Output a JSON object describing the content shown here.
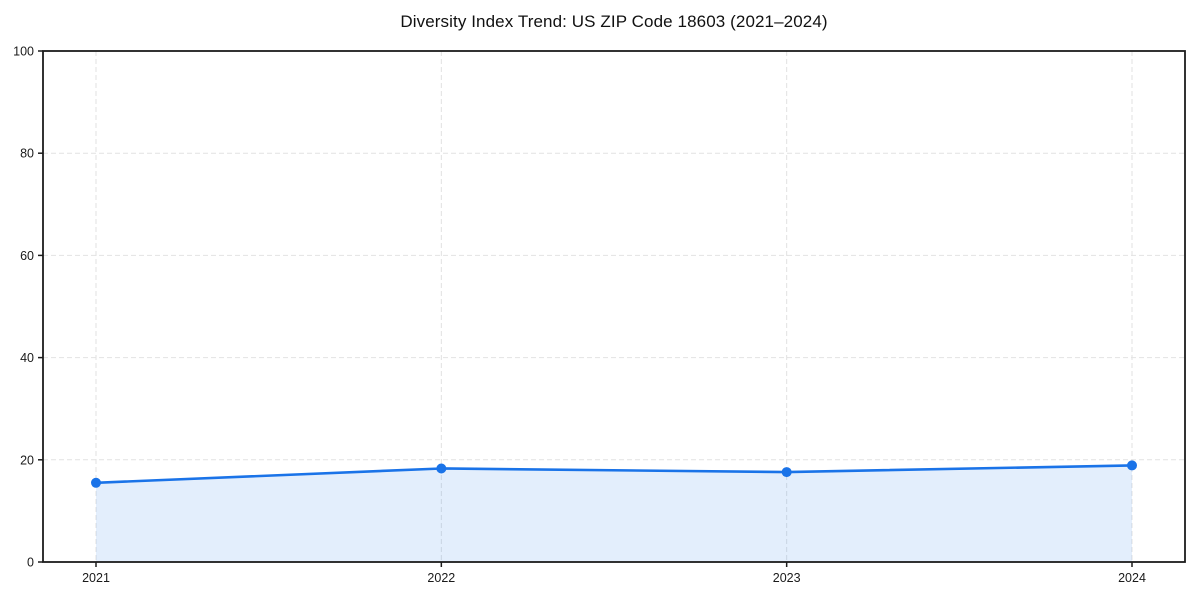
{
  "chart_data": {
    "type": "line",
    "title": "Diversity Index Trend: US ZIP Code 18603 (2021–2024)",
    "categories": [
      "2021",
      "2022",
      "2023",
      "2024"
    ],
    "series": [
      {
        "name": "Diversity Index",
        "values": [
          15.5,
          18.3,
          17.6,
          18.9
        ]
      }
    ],
    "xlabel": "",
    "ylabel": "",
    "ylim": [
      0,
      100
    ],
    "yticks": [
      0,
      20,
      40,
      60,
      80,
      100
    ],
    "grid": true,
    "grid_style": "dashed",
    "legend": "none",
    "area_fill": true,
    "marker": "circle",
    "colors": {
      "line": "#1a73e8",
      "marker": "#1a73e8",
      "area": "rgba(26,115,232,0.12)",
      "gridline": "#e2e2e2",
      "spine": "#1c1c1c",
      "tick_label": "#1a1a1a",
      "background": "#ffffff"
    }
  }
}
